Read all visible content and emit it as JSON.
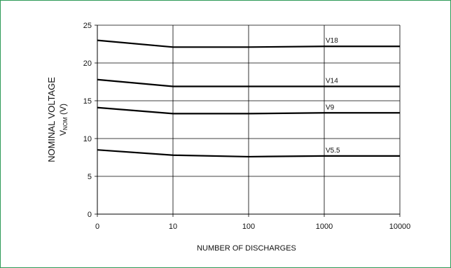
{
  "chart_data": {
    "type": "line",
    "x_categories": [
      "0",
      "10",
      "100",
      "1000",
      "10000"
    ],
    "xlabel": "NUMBER OF DISCHARGES",
    "ylabel_line1": "NOMINAL VOLTAGE",
    "ylabel_line2_main": "V",
    "ylabel_line2_sub": "NOM",
    "ylabel_line2_unit": " (V)",
    "ylim": [
      0,
      25
    ],
    "yticks": [
      "0",
      "5",
      "10",
      "15",
      "20",
      "25"
    ],
    "grid": true,
    "series": [
      {
        "name": "V18",
        "values": [
          23.0,
          22.1,
          22.1,
          22.2,
          22.2
        ]
      },
      {
        "name": "V14",
        "values": [
          17.8,
          16.9,
          16.9,
          16.9,
          16.9
        ]
      },
      {
        "name": "V9",
        "values": [
          14.1,
          13.3,
          13.3,
          13.4,
          13.4
        ]
      },
      {
        "name": "V5.5",
        "values": [
          8.5,
          7.8,
          7.6,
          7.7,
          7.7
        ]
      }
    ],
    "series_colors": {
      "line": "#000000",
      "grid": "#000000",
      "frame_border": "#2e9a57"
    }
  }
}
